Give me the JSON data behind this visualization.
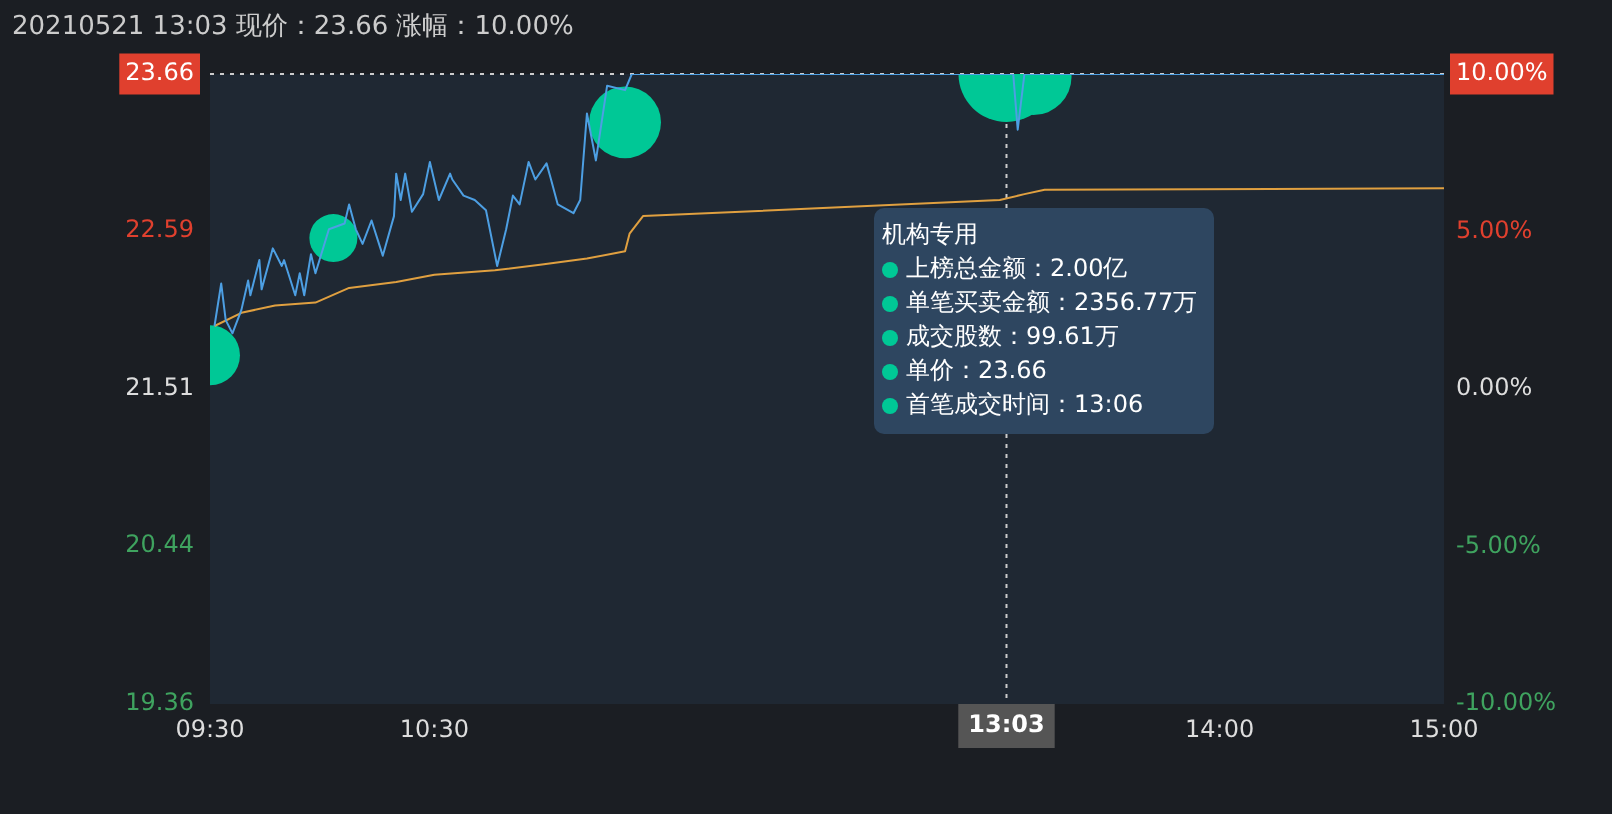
{
  "chart_data": {
    "type": "line",
    "title": "20210521 13:03 现价：23.66 涨幅：10.00%",
    "xlim": [
      9.5,
      15
    ],
    "xticks": [
      {
        "value": 9.5,
        "label": "09:30"
      },
      {
        "value": 10.5,
        "label": "10:30"
      },
      {
        "value": 14,
        "label": "14:00"
      },
      {
        "value": 15,
        "label": "15:00"
      }
    ],
    "ylim": [
      19.36,
      23.66
    ],
    "yticks": [
      19.36,
      20.44,
      21.51,
      22.59,
      23.66
    ],
    "y2lim": [
      -10,
      10
    ],
    "y2ticks": [
      {
        "value": -10,
        "label": "-10.00%"
      },
      {
        "value": -5,
        "label": "-5.00%"
      },
      {
        "value": 0,
        "label": "0.00%"
      },
      {
        "value": 5,
        "label": "5.00%"
      },
      {
        "value": 10,
        "label": "10.00%"
      }
    ],
    "series": [
      {
        "color": "#4d9fe3",
        "x": [
          9.52,
          9.55,
          9.57,
          9.6,
          9.64,
          9.67,
          9.68,
          9.72,
          9.73,
          9.78,
          9.82,
          9.83,
          9.88,
          9.9,
          9.92,
          9.95,
          9.97,
          10.03,
          10.1,
          10.12,
          10.15,
          10.18,
          10.22,
          10.27,
          10.32,
          10.33,
          10.35,
          10.37,
          10.4,
          10.45,
          10.48,
          10.52,
          10.57,
          10.58,
          10.63,
          10.68,
          10.73,
          10.78,
          10.82,
          10.85,
          10.88,
          10.92,
          10.95,
          11,
          11.02,
          11.05,
          11.12,
          11.15,
          11.18,
          11.22,
          11.27,
          11.35,
          11.38,
          13.08,
          13.1,
          13.13,
          15
        ],
        "values": [
          21.94,
          22.23,
          21.98,
          21.89,
          22.05,
          22.25,
          22.15,
          22.39,
          22.19,
          22.47,
          22.35,
          22.39,
          22.15,
          22.3,
          22.15,
          22.43,
          22.3,
          22.6,
          22.64,
          22.77,
          22.6,
          22.5,
          22.66,
          22.42,
          22.69,
          22.98,
          22.8,
          22.98,
          22.72,
          22.84,
          23.06,
          22.8,
          22.98,
          22.94,
          22.83,
          22.8,
          22.73,
          22.35,
          22.6,
          22.83,
          22.77,
          23.06,
          22.94,
          23.05,
          22.94,
          22.77,
          22.71,
          22.8,
          23.39,
          23.07,
          23.58,
          23.55,
          23.66,
          23.66,
          23.28,
          23.66,
          23.66
        ]
      },
      {
        "color": "#e0a040",
        "x": [
          9.52,
          9.64,
          9.79,
          9.97,
          10.12,
          10.33,
          10.5,
          10.77,
          10.98,
          11.18,
          11.35,
          11.37,
          11.43,
          13.02,
          13.13,
          13.22,
          15
        ],
        "values": [
          21.94,
          22.03,
          22.08,
          22.1,
          22.2,
          22.24,
          22.29,
          22.32,
          22.36,
          22.4,
          22.45,
          22.57,
          22.69,
          22.8,
          22.84,
          22.87,
          22.88
        ]
      },
      {
        "type": "bubble",
        "color": "#00c896",
        "x": [
          9.5,
          10.05,
          11.35,
          13.05,
          13.17
        ],
        "values": [
          21.74,
          22.54,
          23.33,
          23.66,
          23.64
        ],
        "sizes": [
          0.39,
          0.25,
          0.56,
          1,
          0.63
        ]
      }
    ],
    "ref_lines": [
      {
        "axis": "y",
        "value": 23.66,
        "color": "#cccccc",
        "line_style": "dotted"
      },
      {
        "axis": "x",
        "value": 13.05,
        "label": "13:03",
        "color": "#cccccc",
        "line_style": "dotted"
      }
    ],
    "annotations": [
      "机构专用",
      "上榜总金额：2.00亿",
      "单笔买卖金额：2356.77万",
      "成交股数：99.61万",
      "单价：23.66",
      "首笔成交时间：13:06"
    ],
    "grid": false,
    "legend": false
  }
}
